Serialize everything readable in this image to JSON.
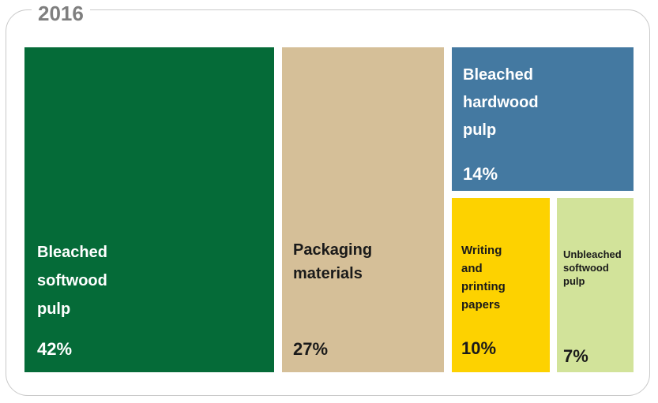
{
  "title": "2016",
  "chart_data": {
    "type": "treemap",
    "title": "2016",
    "items": [
      {
        "label": "Bleached\nsoftwood\npulp",
        "value": 42,
        "value_label": "42%",
        "color": "#056b38",
        "text_color": "#ffffff"
      },
      {
        "label": "Packaging\nmaterials",
        "value": 27,
        "value_label": "27%",
        "color": "#d5bf98",
        "text_color": "#1a1a1a"
      },
      {
        "label": "Bleached\nhardwood\npulp",
        "value": 14,
        "value_label": "14%",
        "color": "#4479a1",
        "text_color": "#ffffff"
      },
      {
        "label": "Writing\nand\nprinting\npapers",
        "value": 10,
        "value_label": "10%",
        "color": "#fdd200",
        "text_color": "#1a1a1a"
      },
      {
        "label": "Unbleached\nsoftwood\npulp",
        "value": 7,
        "value_label": "7%",
        "color": "#d2e39a",
        "text_color": "#1a1a1a"
      }
    ]
  }
}
